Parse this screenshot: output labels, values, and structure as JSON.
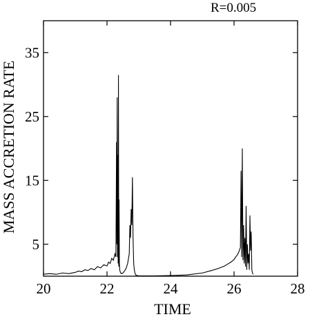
{
  "chart_data": {
    "type": "line",
    "title": "R=0.005",
    "xlabel": "TIME",
    "ylabel": "MASS ACCRETION RATE",
    "xlim": [
      20,
      28
    ],
    "ylim": [
      0,
      40
    ],
    "xticks": [
      20,
      22,
      24,
      26,
      28
    ],
    "yticks": [
      5,
      15,
      25,
      35
    ],
    "grid": false,
    "series": [
      {
        "values_description_hidden": false,
        "x": [
          20.0,
          20.2,
          20.4,
          20.6,
          20.8,
          21.0,
          21.1,
          21.2,
          21.3,
          21.4,
          21.5,
          21.6,
          21.7,
          21.8,
          21.9,
          22.0,
          22.05,
          22.1,
          22.15,
          22.2,
          22.25,
          22.28,
          22.3,
          22.31,
          22.32,
          22.33,
          22.34,
          22.35,
          22.36,
          22.37,
          22.38,
          22.39,
          22.4,
          22.42,
          22.45,
          22.5,
          22.55,
          22.6,
          22.65,
          22.7,
          22.72,
          22.74,
          22.76,
          22.78,
          22.8,
          22.82,
          22.84,
          22.86,
          22.88,
          22.9,
          22.95,
          23.0,
          23.5,
          24.0,
          24.5,
          25.0,
          25.3,
          25.5,
          25.7,
          25.8,
          25.9,
          26.0,
          26.05,
          26.1,
          26.15,
          26.2,
          26.22,
          26.24,
          26.26,
          26.28,
          26.3,
          26.32,
          26.34,
          26.36,
          26.38,
          26.4,
          26.42,
          26.44,
          26.46,
          26.48,
          26.5,
          26.52,
          26.54,
          26.56,
          26.58,
          26.6
        ],
        "y": [
          0.3,
          0.4,
          0.3,
          0.5,
          0.4,
          0.6,
          0.8,
          0.7,
          1.0,
          0.9,
          1.2,
          1.0,
          1.5,
          1.3,
          1.8,
          1.6,
          2.2,
          2.0,
          2.8,
          2.5,
          3.5,
          3.0,
          21.0,
          5.0,
          28.0,
          3.0,
          19.0,
          2.0,
          31.5,
          1.5,
          12.0,
          2.0,
          1.0,
          0.6,
          0.4,
          0.5,
          0.8,
          1.2,
          2.0,
          3.5,
          8.0,
          6.0,
          10.5,
          8.0,
          15.5,
          6.0,
          2.0,
          1.0,
          0.5,
          0.2,
          0.1,
          0.05,
          0.05,
          0.1,
          0.2,
          0.5,
          0.9,
          1.2,
          1.6,
          1.9,
          2.2,
          2.6,
          3.0,
          3.3,
          3.8,
          4.5,
          16.5,
          3.0,
          20.0,
          2.5,
          8.0,
          2.0,
          6.0,
          1.5,
          11.0,
          1.0,
          5.0,
          2.0,
          3.5,
          1.0,
          9.5,
          4.0,
          7.0,
          1.0,
          0.5,
          0.3
        ]
      }
    ]
  }
}
